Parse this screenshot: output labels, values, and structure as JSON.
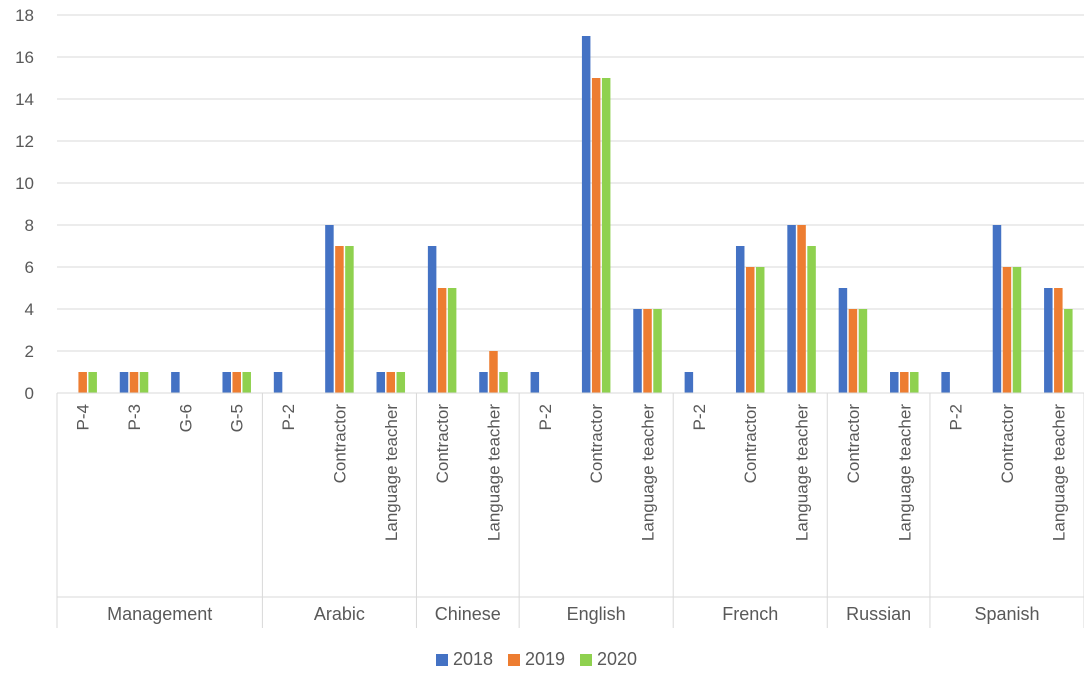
{
  "chart_data": {
    "type": "bar",
    "title": "",
    "xlabel": "",
    "ylabel": "",
    "ylim": [
      0,
      18
    ],
    "yticks": [
      0,
      2,
      4,
      6,
      8,
      10,
      12,
      14,
      16,
      18
    ],
    "grid": "horizontal",
    "legend_position": "bottom",
    "groups": [
      {
        "name": "Management",
        "categories": [
          "P-4",
          "P-3",
          "G-6",
          "G-5"
        ]
      },
      {
        "name": "Arabic",
        "categories": [
          "P-2",
          "Contractor",
          "Language teacher"
        ]
      },
      {
        "name": "Chinese",
        "categories": [
          "Contractor",
          "Language teacher"
        ]
      },
      {
        "name": "English",
        "categories": [
          "P-2",
          "Contractor",
          "Language teacher"
        ]
      },
      {
        "name": "French",
        "categories": [
          "P-2",
          "Contractor",
          "Language teacher"
        ]
      },
      {
        "name": "Russian",
        "categories": [
          "Contractor",
          "Language teacher"
        ]
      },
      {
        "name": "Spanish",
        "categories": [
          "P-2",
          "Contractor",
          "Language teacher"
        ]
      }
    ],
    "categories": [
      "P-4",
      "P-3",
      "G-6",
      "G-5",
      "P-2",
      "Contractor",
      "Language teacher",
      "Contractor",
      "Language teacher",
      "P-2",
      "Contractor",
      "Language teacher",
      "P-2",
      "Contractor",
      "Language teacher",
      "Contractor",
      "Language teacher",
      "P-2",
      "Contractor",
      "Language teacher"
    ],
    "series": [
      {
        "name": "2018",
        "color": "#4472C4",
        "values": [
          0,
          1,
          1,
          1,
          1,
          8,
          1,
          7,
          1,
          1,
          17,
          4,
          1,
          7,
          8,
          5,
          1,
          1,
          8,
          5
        ]
      },
      {
        "name": "2019",
        "color": "#ED7D31",
        "values": [
          1,
          1,
          0,
          1,
          0,
          7,
          1,
          5,
          2,
          0,
          15,
          4,
          0,
          6,
          8,
          4,
          1,
          0,
          6,
          5
        ]
      },
      {
        "name": "2020",
        "color": "#8FD14F",
        "values": [
          1,
          1,
          0,
          1,
          0,
          7,
          1,
          5,
          1,
          0,
          15,
          4,
          0,
          6,
          7,
          4,
          1,
          0,
          6,
          4
        ]
      }
    ]
  }
}
